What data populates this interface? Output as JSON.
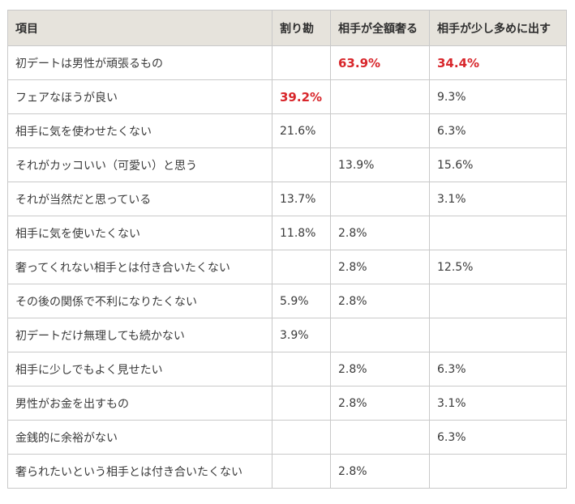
{
  "colors": {
    "header_bg": "#e6e3dc",
    "border": "#c9c9c9",
    "highlight_text": "#d8262b",
    "text": "#3a3a3a"
  },
  "table": {
    "headers": [
      "項目",
      "割り勘",
      "相手が全額奢る",
      "相手が少し多めに出す"
    ],
    "rows": [
      {
        "label": "初デートは男性が頑張るもの",
        "cells": [
          "",
          "63.9%",
          "34.4%"
        ],
        "highlight": [
          false,
          true,
          true
        ]
      },
      {
        "label": "フェアなほうが良い",
        "cells": [
          "39.2%",
          "",
          "9.3%"
        ],
        "highlight": [
          true,
          false,
          false
        ]
      },
      {
        "label": "相手に気を使わせたくない",
        "cells": [
          "21.6%",
          "",
          "6.3%"
        ],
        "highlight": [
          false,
          false,
          false
        ]
      },
      {
        "label": "それがカッコいい（可愛い）と思う",
        "cells": [
          "",
          "13.9%",
          "15.6%"
        ],
        "highlight": [
          false,
          false,
          false
        ]
      },
      {
        "label": "それが当然だと思っている",
        "cells": [
          "13.7%",
          "",
          "3.1%"
        ],
        "highlight": [
          false,
          false,
          false
        ]
      },
      {
        "label": "相手に気を使いたくない",
        "cells": [
          "11.8%",
          "2.8%",
          ""
        ],
        "highlight": [
          false,
          false,
          false
        ]
      },
      {
        "label": "奢ってくれない相手とは付き合いたくない",
        "cells": [
          "",
          "2.8%",
          "12.5%"
        ],
        "highlight": [
          false,
          false,
          false
        ]
      },
      {
        "label": "その後の関係で不利になりたくない",
        "cells": [
          "5.9%",
          "2.8%",
          ""
        ],
        "highlight": [
          false,
          false,
          false
        ]
      },
      {
        "label": "初デートだけ無理しても続かない",
        "cells": [
          "3.9%",
          "",
          ""
        ],
        "highlight": [
          false,
          false,
          false
        ]
      },
      {
        "label": "相手に少しでもよく見せたい",
        "cells": [
          "",
          "2.8%",
          "6.3%"
        ],
        "highlight": [
          false,
          false,
          false
        ]
      },
      {
        "label": "男性がお金を出すもの",
        "cells": [
          "",
          "2.8%",
          "3.1%"
        ],
        "highlight": [
          false,
          false,
          false
        ]
      },
      {
        "label": "金銭的に余裕がない",
        "cells": [
          "",
          "",
          "6.3%"
        ],
        "highlight": [
          false,
          false,
          false
        ]
      },
      {
        "label": "奢られたいという相手とは付き合いたくない",
        "cells": [
          "",
          "2.8%",
          ""
        ],
        "highlight": [
          false,
          false,
          false
        ]
      }
    ]
  }
}
